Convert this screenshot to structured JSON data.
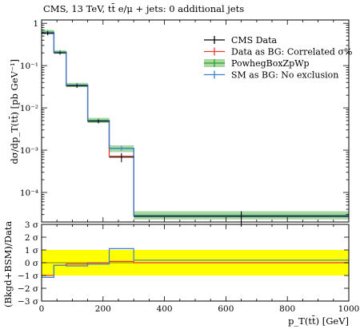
{
  "chart_data": {
    "type": "line",
    "title": "CMS, 13 TeV, tt̄ e/μ + jets: 0 additional jets",
    "xlabel": "p_T(tt̄) [GeV]",
    "ylabel_main": "dσ/dp_T(tt̄) [pb GeV⁻¹]",
    "ylabel_ratio": "(Bkgd+BSM)/Data",
    "xlim": [
      0,
      1000
    ],
    "ylim_main": [
      2e-05,
      1.2
    ],
    "ylim_ratio": [
      -3,
      3
    ],
    "yscale_main": "log",
    "bin_edges": [
      0,
      40,
      80,
      150,
      220,
      300,
      1000
    ],
    "x_ticks": [
      "0",
      "200",
      "400",
      "600",
      "800",
      "1000"
    ],
    "y_ticks_main": [
      "10⁻⁴",
      "10⁻³",
      "10⁻²",
      "10⁻¹",
      "1"
    ],
    "y_ticks_ratio": [
      "−3 σ",
      "−2 σ",
      "−1 σ",
      "0 σ",
      "1 σ",
      "2 σ",
      "3 σ"
    ],
    "legend_position": "top-right",
    "series": [
      {
        "name": "CMS Data",
        "color": "#000000",
        "values": [
          0.58,
          0.2,
          0.033,
          0.0048,
          0.00068,
          2.7e-05
        ],
        "errors_low": [
          0.52,
          0.185,
          0.03,
          0.0043,
          0.00052,
          1.6e-05
        ],
        "errors_high": [
          0.64,
          0.215,
          0.036,
          0.0053,
          0.00085,
          3.6e-05
        ]
      },
      {
        "name": "Data as BG: Correlated σ%",
        "color": "#e8392c",
        "values": [
          0.6,
          0.205,
          0.034,
          0.0049,
          0.00072,
          2.8e-05
        ],
        "ratio": [
          -1.0,
          -0.2,
          -0.1,
          0.0,
          0.1,
          0.0
        ]
      },
      {
        "name": "PowhegBoxZpWp",
        "color": "#2ea02c",
        "band_color": "#a7d9a1",
        "values": [
          0.62,
          0.21,
          0.035,
          0.0051,
          0.0011,
          2.9e-05
        ],
        "band_low": [
          0.55,
          0.19,
          0.031,
          0.0044,
          0.0009,
          2.3e-05
        ],
        "band_high": [
          0.7,
          0.23,
          0.039,
          0.0058,
          0.0013,
          3.6e-05
        ]
      },
      {
        "name": "SM as BG: No exclusion",
        "color": "#3a7fd5",
        "values": [
          0.6,
          0.205,
          0.034,
          0.0049,
          0.0011,
          2.8e-05
        ],
        "ratio": [
          -1.15,
          -0.2,
          -0.25,
          -0.1,
          1.1,
          0.2
        ]
      }
    ],
    "ratio_band": {
      "color": "#ffff00",
      "low": -1,
      "high": 1
    }
  }
}
